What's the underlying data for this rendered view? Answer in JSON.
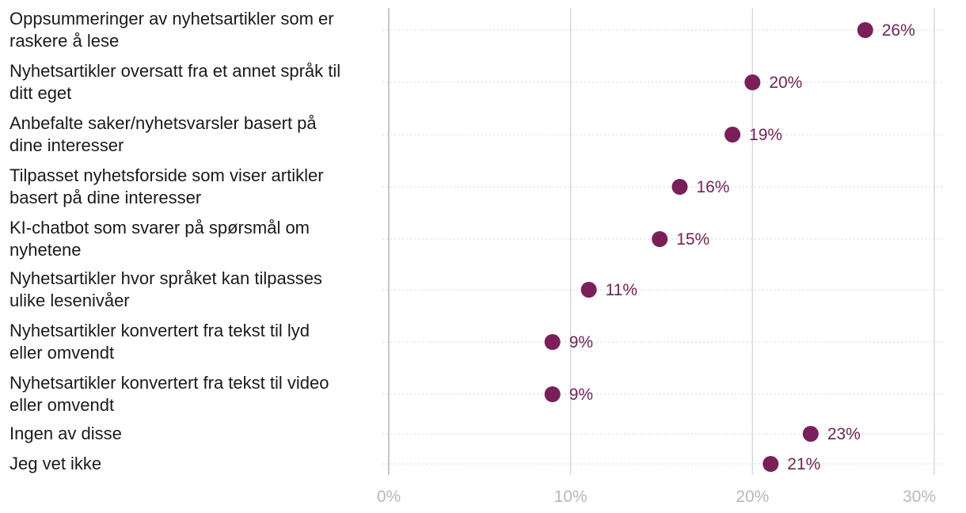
{
  "chart_data": {
    "type": "scatter",
    "orientation": "horizontal-dot",
    "categories": [
      "Oppsummeringer av nyhetsartikler som er raskere å lese",
      "Nyhetsartikler oversatt fra et annet språk til ditt eget",
      "Anbefalte saker/nyhetsvarsler basert på dine interesser",
      "Tilpasset nyhetsforside som viser artikler basert på dine interesser",
      "KI-chatbot som svarer på spørsmål om nyhetene",
      "Nyhetsartikler hvor språket kan tilpasses ulike lesenivåer",
      "Nyhetsartikler konvertert fra tekst til lyd eller omvendt",
      "Nyhetsartikler konvertert fra tekst til video eller omvendt",
      "Ingen av disse",
      "Jeg vet ikke"
    ],
    "label_lines": [
      [
        "Oppsummeringer av nyhetsartikler som er",
        "raskere å lese"
      ],
      [
        "Nyhetsartikler oversatt fra et annet språk til",
        "ditt eget"
      ],
      [
        "Anbefalte saker/nyhetsvarsler basert på",
        "dine interesser"
      ],
      [
        "Tilpasset nyhetsforside som viser artikler",
        "basert på dine interesser"
      ],
      [
        "KI-chatbot som svarer på spørsmål om",
        "nyhetene"
      ],
      [
        "Nyhetsartikler hvor språket kan tilpasses",
        "ulike lesenivåer"
      ],
      [
        "Nyhetsartikler konvertert fra tekst til lyd",
        "eller omvendt"
      ],
      [
        "Nyhetsartikler konvertert fra tekst til video",
        "eller omvendt"
      ],
      [
        "Ingen av disse"
      ],
      [
        "Jeg vet ikke"
      ]
    ],
    "values": [
      26.2,
      20.0,
      18.9,
      16.0,
      14.9,
      11.0,
      9.0,
      9.0,
      23.2,
      21.0
    ],
    "value_labels": [
      "26%",
      "20%",
      "19%",
      "16%",
      "15%",
      "11%",
      "9%",
      "9%",
      "23%",
      "21%"
    ],
    "x_ticks": [
      0,
      10,
      20,
      30
    ],
    "x_tick_labels": [
      "0%",
      "10%",
      "20%",
      "30%"
    ],
    "xlim": [
      0,
      30
    ],
    "title": "",
    "xlabel": "",
    "ylabel": "",
    "grid": true,
    "legend": "none",
    "colors": {
      "dot": "#7b1e5a",
      "value_text": "#7b1e5a",
      "grid_major": "#d9d9d9",
      "grid_row": "#d6d6d6",
      "axis": "#c8c8c8",
      "tick_text": "#b8b8b8",
      "label_text": "#1a1a1a"
    }
  }
}
